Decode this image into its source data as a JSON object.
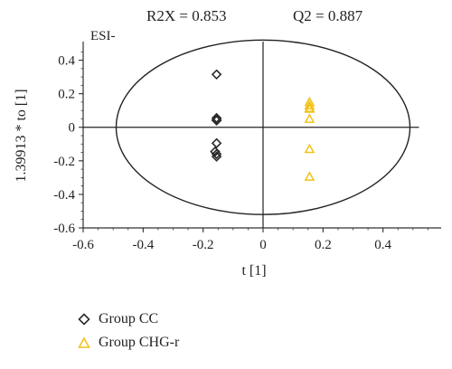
{
  "chart_data": {
    "type": "scatter",
    "title_left": "R2X = 0.853",
    "title_right": "Q2 = 0.887",
    "mode_label": "ESI-",
    "xlabel": "t [1]",
    "ylabel": "1.39913 * to [1]",
    "xlim": [
      -0.6,
      0.6
    ],
    "ylim": [
      -0.6,
      0.5
    ],
    "xticks": [
      -0.6,
      -0.4,
      -0.2,
      0,
      0.2,
      0.4
    ],
    "xtick_labels": [
      "-0.6",
      "-0.4",
      "-0.2",
      "0",
      "0.2",
      "0.4"
    ],
    "yticks": [
      0.4,
      0.2,
      0,
      -0.2,
      -0.4,
      -0.6
    ],
    "ytick_labels": [
      "0.4",
      "0.2",
      "0",
      "-0.2",
      "-0.4",
      "-0.6"
    ],
    "ellipse": {
      "cx": 0,
      "cy": 0,
      "rx": 0.49,
      "ry": 0.52
    },
    "series": [
      {
        "name": "Group CC",
        "marker": "diamond",
        "color": "#2b2b2b",
        "points": [
          [
            -0.155,
            0.315
          ],
          [
            -0.155,
            0.055
          ],
          [
            -0.155,
            0.045
          ],
          [
            -0.155,
            0.04
          ],
          [
            -0.155,
            -0.095
          ],
          [
            -0.16,
            -0.145
          ],
          [
            -0.155,
            -0.16
          ],
          [
            -0.155,
            -0.175
          ]
        ]
      },
      {
        "name": "Group CHG-r",
        "marker": "triangle",
        "color": "#f2c21b",
        "points": [
          [
            0.155,
            0.15
          ],
          [
            0.155,
            0.13
          ],
          [
            0.155,
            0.115
          ],
          [
            0.155,
            0.11
          ],
          [
            0.155,
            0.05
          ],
          [
            0.155,
            -0.13
          ],
          [
            0.155,
            -0.295
          ]
        ]
      }
    ]
  }
}
